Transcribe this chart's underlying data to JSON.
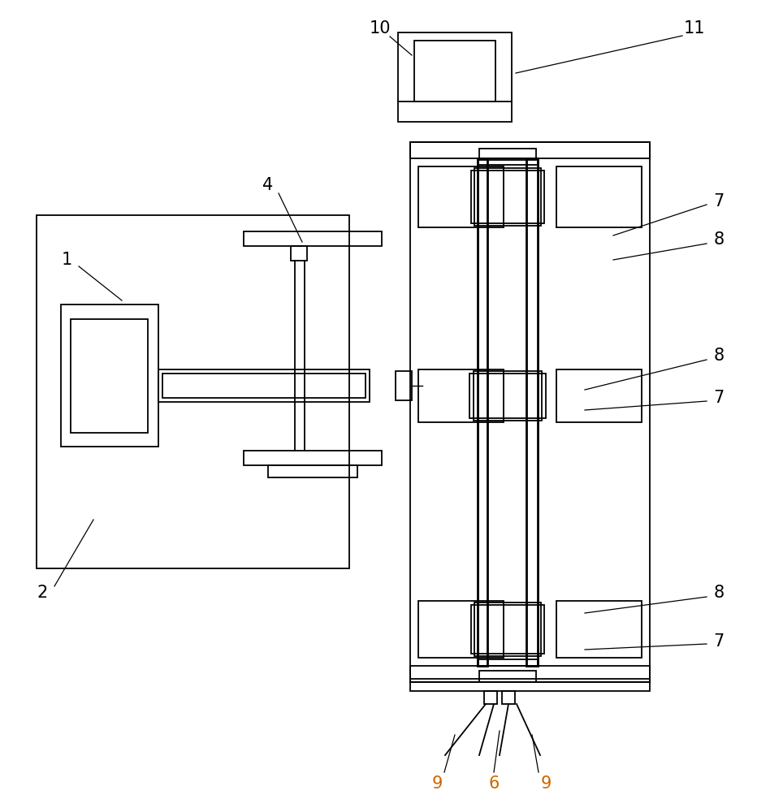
{
  "bg_color": "#ffffff",
  "line_color": "#000000",
  "label_color": "#000000",
  "figsize": [
    9.64,
    10.0
  ],
  "dpi": 100
}
